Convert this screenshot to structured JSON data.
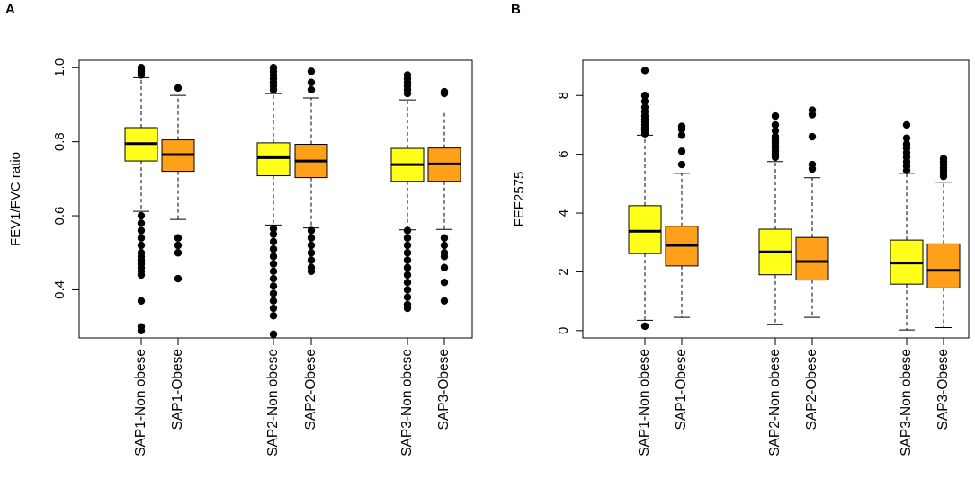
{
  "colors": {
    "nonobese": "#FFFF1A",
    "obese": "#FFA01A",
    "frame": "#000000"
  },
  "chart_data": [
    {
      "panel": "A",
      "type": "boxplot",
      "ylabel": "FEV1/FVC ratio",
      "ylim": [
        0.27,
        1.02
      ],
      "yticks": [
        "0.4",
        "0.6",
        "0.8",
        "1.0"
      ],
      "categories": [
        "SAP1-Non obese",
        "SAP1-Obese",
        "SAP2-Non obese",
        "SAP2-Obese",
        "SAP3-Non obese",
        "SAP3-Obese"
      ],
      "groups": [
        "nonobese",
        "obese",
        "nonobese",
        "obese",
        "nonobese",
        "obese"
      ],
      "boxes": [
        {
          "whisker_low": 0.612,
          "q1": 0.748,
          "median": 0.795,
          "q3": 0.838,
          "whisker_high": 0.973,
          "outliers": [
            1.0,
            0.995,
            0.99,
            0.985,
            0.98,
            0.6,
            0.58,
            0.56,
            0.54,
            0.52,
            0.5,
            0.49,
            0.48,
            0.47,
            0.46,
            0.45,
            0.44,
            0.37,
            0.3,
            0.29
          ]
        },
        {
          "whisker_low": 0.59,
          "q1": 0.72,
          "median": 0.765,
          "q3": 0.805,
          "whisker_high": 0.925,
          "outliers": [
            0.945,
            0.54,
            0.52,
            0.5,
            0.43
          ]
        },
        {
          "whisker_low": 0.575,
          "q1": 0.708,
          "median": 0.757,
          "q3": 0.797,
          "whisker_high": 0.93,
          "outliers": [
            1.0,
            0.99,
            0.98,
            0.97,
            0.96,
            0.95,
            0.94,
            0.565,
            0.55,
            0.53,
            0.51,
            0.49,
            0.47,
            0.45,
            0.43,
            0.41,
            0.39,
            0.37,
            0.35,
            0.33,
            0.28
          ]
        },
        {
          "whisker_low": 0.567,
          "q1": 0.703,
          "median": 0.748,
          "q3": 0.793,
          "whisker_high": 0.918,
          "outliers": [
            0.99,
            0.96,
            0.94,
            0.56,
            0.54,
            0.52,
            0.5,
            0.48,
            0.46,
            0.45
          ]
        },
        {
          "whisker_low": 0.562,
          "q1": 0.693,
          "median": 0.738,
          "q3": 0.782,
          "whisker_high": 0.913,
          "outliers": [
            0.98,
            0.97,
            0.96,
            0.95,
            0.94,
            0.93,
            0.56,
            0.54,
            0.52,
            0.5,
            0.48,
            0.46,
            0.44,
            0.42,
            0.4,
            0.38,
            0.36,
            0.35
          ]
        },
        {
          "whisker_low": 0.563,
          "q1": 0.693,
          "median": 0.74,
          "q3": 0.783,
          "whisker_high": 0.883,
          "outliers": [
            0.935,
            0.93,
            0.54,
            0.52,
            0.5,
            0.49,
            0.46,
            0.42,
            0.37
          ]
        }
      ]
    },
    {
      "panel": "B",
      "type": "boxplot",
      "ylabel": "FEF2575",
      "ylim": [
        -0.25,
        9.2
      ],
      "yticks": [
        "0",
        "2",
        "4",
        "6",
        "8"
      ],
      "categories": [
        "SAP1-Non obese",
        "SAP1-Obese",
        "SAP2-Non obese",
        "SAP2-Obese",
        "SAP3-Non obese",
        "SAP3-Obese"
      ],
      "groups": [
        "nonobese",
        "obese",
        "nonobese",
        "obese",
        "nonobese",
        "obese"
      ],
      "boxes": [
        {
          "whisker_low": 0.35,
          "q1": 2.62,
          "median": 3.38,
          "q3": 4.25,
          "whisker_high": 6.65,
          "outliers": [
            8.85,
            8.0,
            7.8,
            7.6,
            7.45,
            7.3,
            7.2,
            7.1,
            7.0,
            6.9,
            6.8,
            6.7,
            0.15
          ]
        },
        {
          "whisker_low": 0.45,
          "q1": 2.2,
          "median": 2.9,
          "q3": 3.55,
          "whisker_high": 5.35,
          "outliers": [
            6.95,
            6.85,
            6.65,
            6.1,
            5.65
          ]
        },
        {
          "whisker_low": 0.2,
          "q1": 1.9,
          "median": 2.68,
          "q3": 3.45,
          "whisker_high": 5.75,
          "outliers": [
            7.3,
            7.0,
            6.8,
            6.6,
            6.5,
            6.4,
            6.3,
            6.2,
            6.1,
            6.0,
            5.9
          ]
        },
        {
          "whisker_low": 0.45,
          "q1": 1.72,
          "median": 2.35,
          "q3": 3.17,
          "whisker_high": 5.2,
          "outliers": [
            7.5,
            7.35,
            6.6,
            5.65,
            5.5
          ]
        },
        {
          "whisker_low": 0.02,
          "q1": 1.58,
          "median": 2.3,
          "q3": 3.08,
          "whisker_high": 5.35,
          "outliers": [
            7.0,
            6.55,
            6.35,
            6.2,
            6.05,
            5.9,
            5.75,
            5.6,
            5.45
          ]
        },
        {
          "whisker_low": 0.1,
          "q1": 1.45,
          "median": 2.05,
          "q3": 2.95,
          "whisker_high": 5.05,
          "outliers": [
            5.85,
            5.75,
            5.65,
            5.55,
            5.45,
            5.35,
            5.25
          ]
        }
      ]
    }
  ]
}
